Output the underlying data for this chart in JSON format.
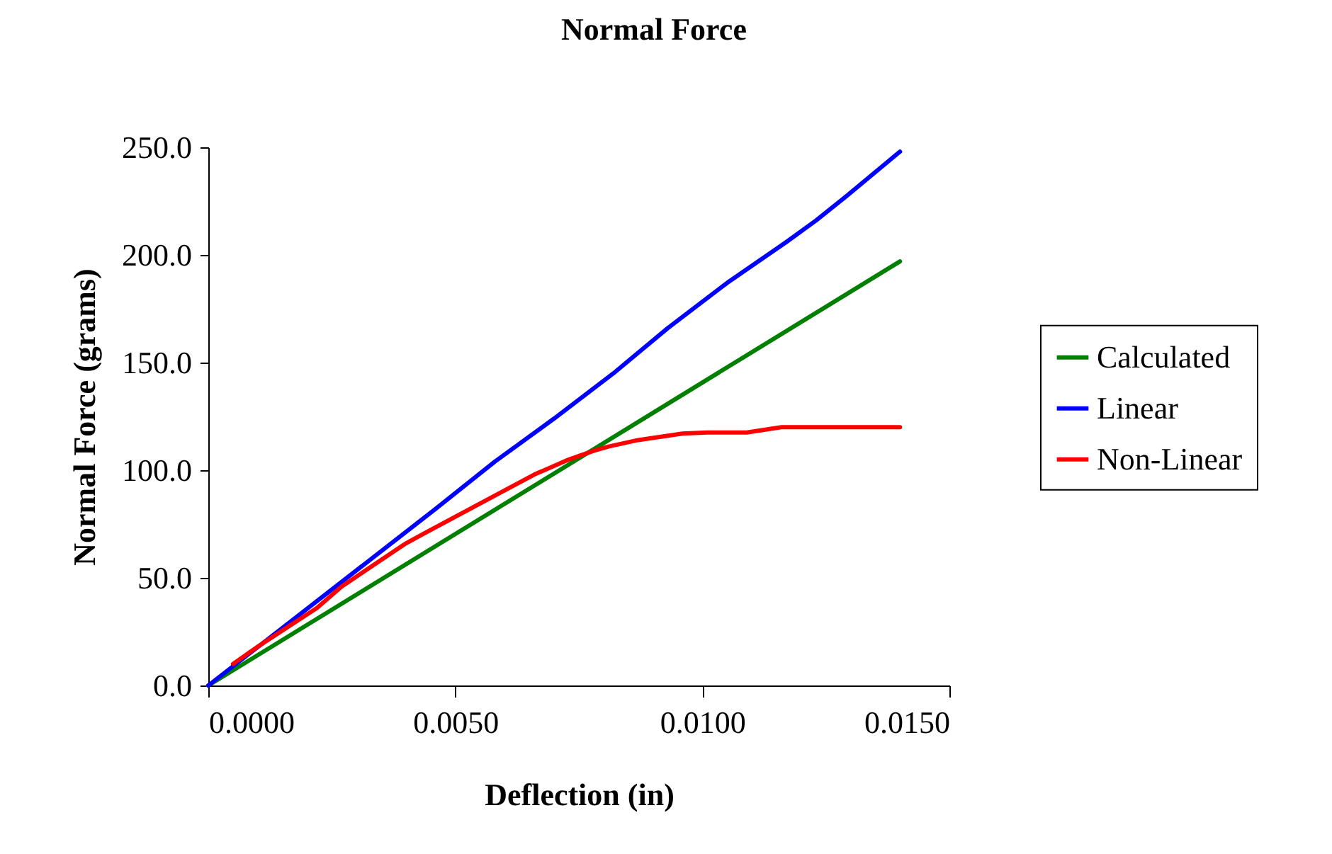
{
  "chart_data": {
    "type": "line",
    "title": "Normal Force",
    "xlabel": "Deflection (in)",
    "ylabel": "Normal Force (grams)",
    "legend": "right",
    "line_style": "solid",
    "xlim": [
      0,
      0.015
    ],
    "xticks": [
      {
        "value": 0,
        "label": "0.0000"
      },
      {
        "value": 0.005,
        "label": "0.0050"
      },
      {
        "value": 0.01,
        "label": "0.0100"
      },
      {
        "value": 0.015,
        "label": "0.0150"
      }
    ],
    "ylim": [
      0,
      250
    ],
    "yticks": [
      {
        "value": 0,
        "label": "0.0"
      },
      {
        "value": 50,
        "label": "50.0"
      },
      {
        "value": 100,
        "label": "100.0"
      },
      {
        "value": 150,
        "label": "150.0"
      },
      {
        "value": 200,
        "label": "200.0"
      },
      {
        "value": 250,
        "label": "250.0"
      }
    ],
    "series": [
      {
        "name": "Calculated",
        "color": "#008000",
        "x": [
          0,
          0.014
        ],
        "values": [
          0,
          197
        ]
      },
      {
        "name": "Linear",
        "color": "#0000ff",
        "x": [
          0,
          0.0023,
          0.0046,
          0.0058,
          0.007,
          0.0082,
          0.0093,
          0.0105,
          0.0117,
          0.0123,
          0.0129,
          0.014
        ],
        "values": [
          0,
          41,
          82,
          104,
          124,
          145,
          166,
          187,
          206,
          216,
          227,
          248
        ]
      },
      {
        "name": "Non-Linear",
        "color": "#ff0000",
        "x": [
          0.0005,
          0.001,
          0.0022,
          0.0027,
          0.004,
          0.0044,
          0.0057,
          0.0066,
          0.0073,
          0.0078,
          0.0081,
          0.0087,
          0.0096,
          0.0101,
          0.0109,
          0.0116,
          0.0129,
          0.014
        ],
        "values": [
          10,
          18,
          36,
          46,
          66,
          71,
          87,
          98,
          105,
          109,
          111,
          114,
          117,
          117.5,
          117.5,
          120,
          120,
          120
        ]
      }
    ]
  }
}
